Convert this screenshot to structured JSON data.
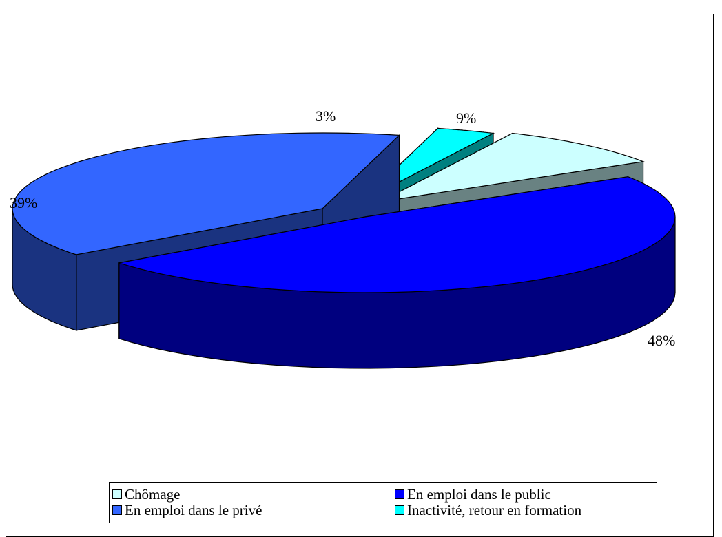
{
  "chart_data": {
    "type": "pie",
    "variant": "3d-exploded",
    "title": "",
    "slices": [
      {
        "label": "Chômage",
        "value": 9,
        "data_label": "9%",
        "color": "#ccffff",
        "side_color": "#698282"
      },
      {
        "label": "En emploi dans le public",
        "value": 48,
        "data_label": "48%",
        "color": "#0000ff",
        "side_color": "#00007f"
      },
      {
        "label": "En emploi dans le privé",
        "value": 39,
        "data_label": "39%",
        "color": "#3366ff",
        "side_color": "#1a3380"
      },
      {
        "label": "Inactivité, retour en formation",
        "value": 3,
        "data_label": "3%",
        "color": "#00ffff",
        "side_color": "#008080"
      }
    ],
    "legend": {
      "position": "bottom",
      "entries": [
        "Chômage",
        "En emploi dans le public",
        "En emploi dans le privé",
        "Inactivité, retour en formation"
      ]
    }
  }
}
